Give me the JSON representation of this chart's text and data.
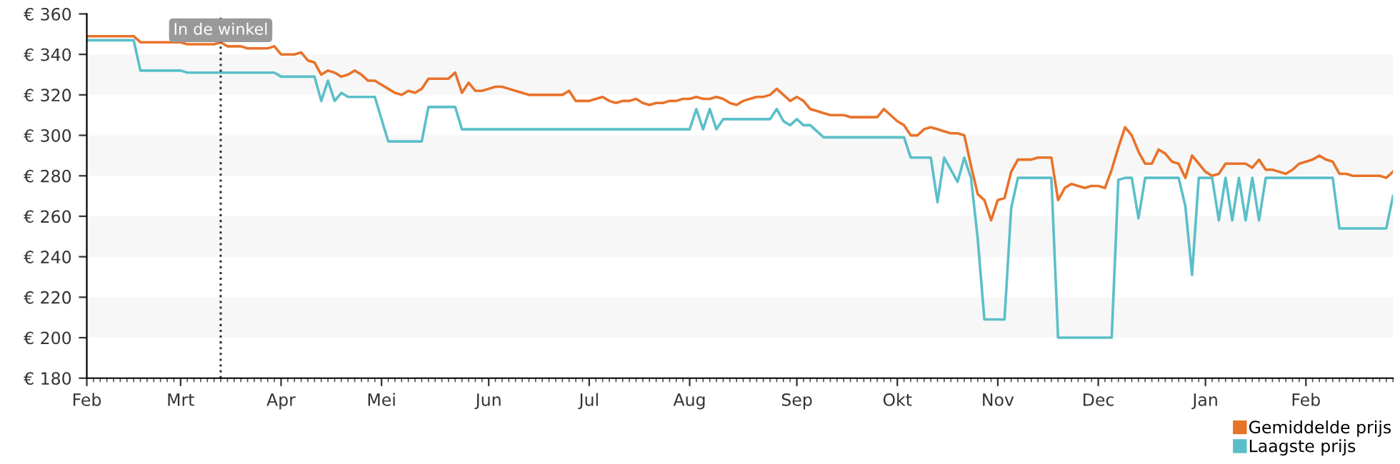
{
  "chart_data": {
    "type": "line",
    "ylim": [
      180,
      360
    ],
    "yticks": [
      {
        "value": 180,
        "label": "€ 180"
      },
      {
        "value": 200,
        "label": "€ 200"
      },
      {
        "value": 220,
        "label": "€ 220"
      },
      {
        "value": 240,
        "label": "€ 240"
      },
      {
        "value": 260,
        "label": "€ 260"
      },
      {
        "value": 280,
        "label": "€ 280"
      },
      {
        "value": 300,
        "label": "€ 300"
      },
      {
        "value": 320,
        "label": "€ 320"
      },
      {
        "value": 340,
        "label": "€ 340"
      },
      {
        "value": 360,
        "label": "€ 360"
      }
    ],
    "categories": [
      "Feb",
      null,
      null,
      null,
      null,
      null,
      null,
      null,
      null,
      null,
      null,
      null,
      null,
      null,
      "Mrt",
      null,
      null,
      null,
      null,
      null,
      null,
      null,
      null,
      null,
      null,
      null,
      null,
      null,
      null,
      "Apr",
      null,
      null,
      null,
      null,
      null,
      null,
      null,
      null,
      null,
      null,
      null,
      null,
      null,
      null,
      "Mei",
      null,
      null,
      null,
      null,
      null,
      null,
      null,
      null,
      null,
      null,
      null,
      null,
      null,
      null,
      null,
      "Jun",
      null,
      null,
      null,
      null,
      null,
      null,
      null,
      null,
      null,
      null,
      null,
      null,
      null,
      null,
      "Jul",
      null,
      null,
      null,
      null,
      null,
      null,
      null,
      null,
      null,
      null,
      null,
      null,
      null,
      null,
      "Aug",
      null,
      null,
      null,
      null,
      null,
      null,
      null,
      null,
      null,
      null,
      null,
      null,
      null,
      null,
      null,
      "Sep",
      null,
      null,
      null,
      null,
      null,
      null,
      null,
      null,
      null,
      null,
      null,
      null,
      null,
      null,
      "Okt",
      null,
      null,
      null,
      null,
      null,
      null,
      null,
      null,
      null,
      null,
      null,
      null,
      null,
      null,
      "Nov",
      null,
      null,
      null,
      null,
      null,
      null,
      null,
      null,
      null,
      null,
      null,
      null,
      null,
      null,
      "Dec",
      null,
      null,
      null,
      null,
      null,
      null,
      null,
      null,
      null,
      null,
      null,
      null,
      null,
      null,
      null,
      "Jan",
      null,
      null,
      null,
      null,
      null,
      null,
      null,
      null,
      null,
      null,
      null,
      null,
      null,
      null,
      "Feb",
      null,
      null,
      null,
      null,
      null,
      null,
      null,
      null,
      null,
      null,
      null,
      null,
      null
    ],
    "bands": [
      {
        "axis": "y",
        "from": 200,
        "to": 220,
        "color": "#f7f7f7"
      },
      {
        "axis": "y",
        "from": 240,
        "to": 260,
        "color": "#f7f7f7"
      },
      {
        "axis": "y",
        "from": 280,
        "to": 300,
        "color": "#f7f7f7"
      },
      {
        "axis": "y",
        "from": 320,
        "to": 340,
        "color": "#f7f7f7"
      }
    ],
    "legend": "bottom right",
    "marker": "none",
    "line_style": "solid",
    "annotations": [
      "In de winkel"
    ],
    "series": [
      {
        "name": "Gemiddelde prijs",
        "color": "#e8732a",
        "values": [
          349,
          349,
          349,
          349,
          349,
          349,
          349,
          349,
          346,
          346,
          346,
          346,
          346,
          346,
          346,
          345,
          345,
          345,
          345,
          345,
          346,
          344,
          344,
          344,
          343,
          343,
          343,
          343,
          344,
          340,
          340,
          340,
          341,
          337,
          336,
          330,
          332,
          331,
          329,
          330,
          332,
          330,
          327,
          327,
          325,
          323,
          321,
          320,
          322,
          321,
          323,
          328,
          328,
          328,
          328,
          331,
          321,
          326,
          322,
          322,
          323,
          324,
          324,
          323,
          322,
          321,
          320,
          320,
          320,
          320,
          320,
          320,
          322,
          317,
          317,
          317,
          318,
          319,
          317,
          316,
          317,
          317,
          318,
          316,
          315,
          316,
          316,
          317,
          317,
          318,
          318,
          319,
          318,
          318,
          319,
          318,
          316,
          315,
          317,
          318,
          319,
          319,
          320,
          323,
          320,
          317,
          319,
          317,
          313,
          312,
          311,
          310,
          310,
          310,
          309,
          309,
          309,
          309,
          309,
          313,
          310,
          307,
          305,
          300,
          300,
          303,
          304,
          303,
          302,
          301,
          301,
          300,
          285,
          271,
          268,
          258,
          268,
          269,
          282,
          288,
          288,
          288,
          289,
          289,
          289,
          268,
          274,
          276,
          275,
          274,
          275,
          275,
          274,
          283,
          294,
          304,
          300,
          292,
          286,
          286,
          293,
          291,
          287,
          286,
          279,
          290,
          286,
          282,
          280,
          281,
          286,
          286,
          286,
          286,
          284,
          288,
          283,
          283,
          282,
          281,
          283,
          286,
          287,
          288,
          290,
          288,
          287,
          281,
          281,
          280,
          280,
          280,
          280,
          280,
          279,
          282
        ]
      },
      {
        "name": "Laagste prijs",
        "color": "#5bbfc9",
        "values": [
          347,
          347,
          347,
          347,
          347,
          347,
          347,
          347,
          332,
          332,
          332,
          332,
          332,
          332,
          332,
          331,
          331,
          331,
          331,
          331,
          331,
          331,
          331,
          331,
          331,
          331,
          331,
          331,
          331,
          329,
          329,
          329,
          329,
          329,
          329,
          317,
          327,
          317,
          321,
          319,
          319,
          319,
          319,
          319,
          308,
          297,
          297,
          297,
          297,
          297,
          297,
          314,
          314,
          314,
          314,
          314,
          303,
          303,
          303,
          303,
          303,
          303,
          303,
          303,
          303,
          303,
          303,
          303,
          303,
          303,
          303,
          303,
          303,
          303,
          303,
          303,
          303,
          303,
          303,
          303,
          303,
          303,
          303,
          303,
          303,
          303,
          303,
          303,
          303,
          303,
          303,
          313,
          303,
          313,
          303,
          308,
          308,
          308,
          308,
          308,
          308,
          308,
          308,
          313,
          307,
          305,
          308,
          305,
          305,
          302,
          299,
          299,
          299,
          299,
          299,
          299,
          299,
          299,
          299,
          299,
          299,
          299,
          299,
          289,
          289,
          289,
          289,
          267,
          289,
          283,
          277,
          289,
          279,
          249,
          209,
          209,
          209,
          209,
          264,
          279,
          279,
          279,
          279,
          279,
          279,
          200,
          200,
          200,
          200,
          200,
          200,
          200,
          200,
          200,
          278,
          279,
          279,
          259,
          279,
          279,
          279,
          279,
          279,
          279,
          265,
          231,
          279,
          279,
          279,
          258,
          279,
          258,
          279,
          258,
          279,
          258,
          279,
          279,
          279,
          279,
          279,
          279,
          279,
          279,
          279,
          279,
          279,
          254,
          254,
          254,
          254,
          254,
          254,
          254,
          254,
          270
        ]
      }
    ]
  }
}
